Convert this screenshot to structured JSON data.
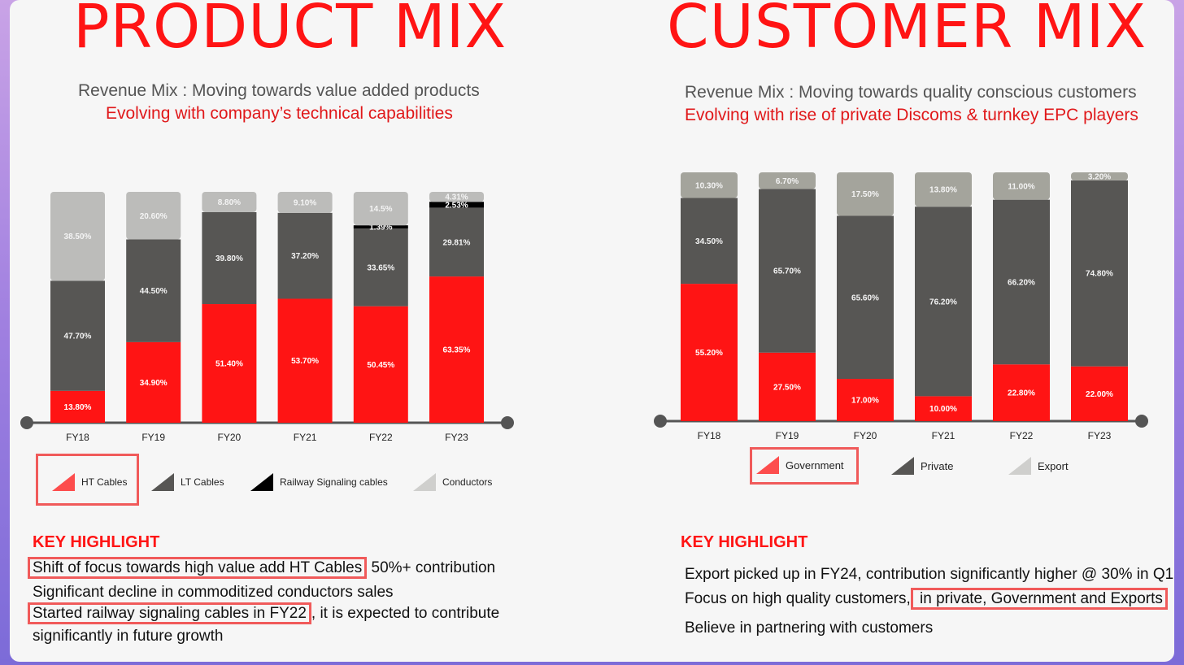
{
  "left": {
    "title": "PRODUCT MIX",
    "subtitle1": "Revenue Mix : Moving towards value added products",
    "subtitle2": "Evolving with company’s technical capabilities",
    "legend": [
      {
        "label": "HT Cables",
        "color": "#ff1414"
      },
      {
        "label": "LT Cables",
        "color": "#575654"
      },
      {
        "label": "Railway Signaling cables",
        "color": "#000000"
      },
      {
        "label": "Conductors",
        "color": "#bcbcba"
      }
    ],
    "key_highlight": {
      "title": "KEY HIGHLIGHT",
      "line1_hl": "Shift of focus towards high value add HT Cables",
      "line1_rest": " 50%+ contribution",
      "line2": "Significant decline in commoditized conductors  sales",
      "line3_hl": "Started railway signaling cables in FY22",
      "line3_rest": ", it is expected to contribute",
      "line4": "significantly in future growth"
    }
  },
  "right": {
    "title": "CUSTOMER MIX",
    "subtitle1": "Revenue Mix : Moving towards quality conscious customers",
    "subtitle2": "Evolving with rise of private Discoms & turnkey EPC players",
    "legend": [
      {
        "label": "Government",
        "color": "#ff1414"
      },
      {
        "label": "Private",
        "color": "#575654"
      },
      {
        "label": "Export",
        "color": "#bcbcba"
      }
    ],
    "key_highlight": {
      "title": "KEY HIGHLIGHT",
      "line1": "Export picked up in FY24, contribution significantly higher @ 30% in Q1",
      "line2_pre": "Focus on high quality customers,",
      "line2_hl": " in private, Government and Exports",
      "line3": "Believe in partnering with customers"
    }
  },
  "chart_data": [
    {
      "type": "bar",
      "stacked": true,
      "categories": [
        "FY18",
        "FY19",
        "FY20",
        "FY21",
        "FY22",
        "FY23"
      ],
      "series": [
        {
          "name": "HT Cables",
          "color": "#ff1414",
          "values": [
            13.8,
            34.9,
            51.4,
            53.7,
            50.45,
            63.35
          ],
          "labels": [
            "13.80%",
            "34.90%",
            "51.40%",
            "53.70%",
            "50.45%",
            "63.35%"
          ]
        },
        {
          "name": "LT Cables",
          "color": "#575654",
          "values": [
            47.7,
            44.5,
            39.8,
            37.2,
            33.65,
            29.81
          ],
          "labels": [
            "47.70%",
            "44.50%",
            "39.80%",
            "37.20%",
            "33.65%",
            "29.81%"
          ]
        },
        {
          "name": "Railway Signaling cables",
          "color": "#000000",
          "values": [
            0,
            0,
            0,
            0,
            1.39,
            2.53
          ],
          "labels": [
            "",
            "",
            "",
            "",
            "1.39%",
            "2.53%"
          ]
        },
        {
          "name": "Conductors",
          "color": "#bcbcba",
          "values": [
            38.5,
            20.6,
            8.8,
            9.1,
            14.5,
            4.31
          ],
          "labels": [
            "38.50%",
            "20.60%",
            "8.80%",
            "9.10%",
            "14.5%",
            "4.31%"
          ]
        }
      ]
    },
    {
      "type": "bar",
      "stacked": true,
      "categories": [
        "FY18",
        "FY19",
        "FY20",
        "FY21",
        "FY22",
        "FY23"
      ],
      "series": [
        {
          "name": "Government",
          "color": "#ff1414",
          "values": [
            55.2,
            27.5,
            17.0,
            10.0,
            22.8,
            22.0
          ],
          "labels": [
            "55.20%",
            "27.50%",
            "17.00%",
            "10.00%",
            "22.80%",
            "22.00%"
          ]
        },
        {
          "name": "Private",
          "color": "#575654",
          "values": [
            34.5,
            65.7,
            65.6,
            76.2,
            66.2,
            74.8
          ],
          "labels": [
            "34.50%",
            "65.70%",
            "65.60%",
            "76.20%",
            "66.20%",
            "74.80%"
          ]
        },
        {
          "name": "Export",
          "color": "#a4a49c",
          "values": [
            10.3,
            6.7,
            17.5,
            13.8,
            11.0,
            3.2
          ],
          "labels": [
            "10.30%",
            "6.70%",
            "17.50%",
            "13.80%",
            "11.00%",
            "3.20%"
          ]
        }
      ]
    }
  ]
}
